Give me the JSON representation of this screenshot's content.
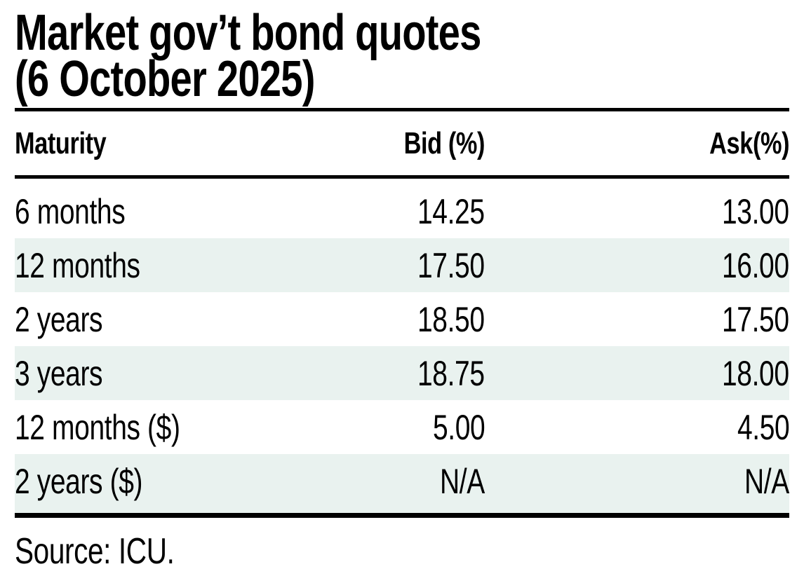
{
  "title": {
    "line1": "Market gov’t bond quotes",
    "line2": "(6 October 2025)"
  },
  "table": {
    "columns": [
      {
        "label": "Maturity"
      },
      {
        "label": "Bid (%)"
      },
      {
        "label": "Ask(%)"
      }
    ],
    "rows": [
      {
        "maturity": "6 months",
        "bid": "14.25",
        "ask": "13.00"
      },
      {
        "maturity": "12 months",
        "bid": "17.50",
        "ask": "16.00"
      },
      {
        "maturity": "2 years",
        "bid": "18.50",
        "ask": "17.50"
      },
      {
        "maturity": "3 years",
        "bid": "18.75",
        "ask": "18.00"
      },
      {
        "maturity": "12 months ($)",
        "bid": "5.00",
        "ask": "4.50"
      },
      {
        "maturity": "2 years ($)",
        "bid": "N/A",
        "ask": "N/A"
      }
    ]
  },
  "source": {
    "text": "Source: ICU."
  },
  "colors": {
    "text": "#000000",
    "background": "#ffffff",
    "stripe": "#e9f2ef",
    "rule": "#000000"
  },
  "chart_data": {
    "type": "table",
    "title": "Market gov’t bond quotes (6 October 2025)",
    "columns": [
      "Maturity",
      "Bid (%)",
      "Ask(%)"
    ],
    "rows": [
      [
        "6 months",
        14.25,
        13.0
      ],
      [
        "12 months",
        17.5,
        16.0
      ],
      [
        "2 years",
        18.5,
        17.5
      ],
      [
        "3 years",
        18.75,
        18.0
      ],
      [
        "12 months ($)",
        5.0,
        4.5
      ],
      [
        "2 years ($)",
        "N/A",
        "N/A"
      ]
    ],
    "source": "Source: ICU.",
    "layout": {
      "striped_rows": [
        2,
        4,
        6
      ],
      "value_alignment": "right",
      "grid": "horizontal-rules-only"
    }
  }
}
